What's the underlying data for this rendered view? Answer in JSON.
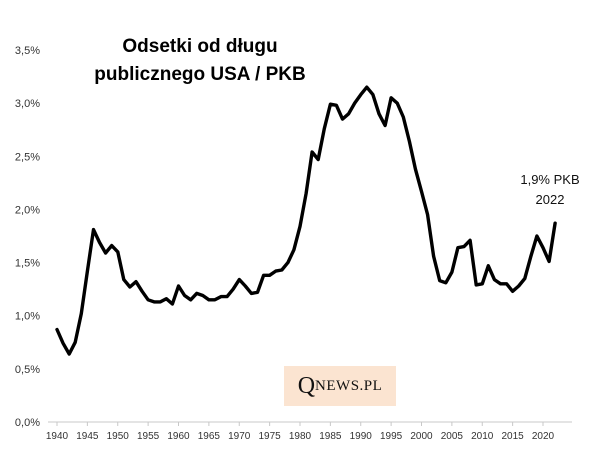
{
  "chart_data": {
    "type": "line",
    "title_lines": [
      "Odsetki od długu",
      "publicznego USA / PKB"
    ],
    "xlabel": "",
    "ylabel": "",
    "xlim": [
      1938,
      2023
    ],
    "ylim": [
      0,
      3.5
    ],
    "y_ticks": [
      {
        "value": 0,
        "label": "0,0%"
      },
      {
        "value": 0.5,
        "label": "0,5%"
      },
      {
        "value": 1.0,
        "label": "1,0%"
      },
      {
        "value": 1.5,
        "label": "1,5%"
      },
      {
        "value": 2.0,
        "label": "2,0%"
      },
      {
        "value": 2.5,
        "label": "2,5%"
      },
      {
        "value": 3.0,
        "label": "3,0%"
      },
      {
        "value": 3.5,
        "label": "3,5%"
      }
    ],
    "x_ticks": [
      1940,
      1945,
      1950,
      1955,
      1960,
      1965,
      1970,
      1975,
      1980,
      1985,
      1990,
      1995,
      2000,
      2005,
      2010,
      2015,
      2020
    ],
    "grid": false,
    "series": [
      {
        "name": "Odsetki od długu publicznego USA / PKB",
        "color": "#000000",
        "x": [
          1940,
          1941,
          1942,
          1943,
          1944,
          1945,
          1946,
          1947,
          1948,
          1949,
          1950,
          1951,
          1952,
          1953,
          1954,
          1955,
          1956,
          1957,
          1958,
          1959,
          1960,
          1961,
          1962,
          1963,
          1964,
          1965,
          1966,
          1967,
          1968,
          1969,
          1970,
          1971,
          1972,
          1973,
          1974,
          1975,
          1976,
          1977,
          1978,
          1979,
          1980,
          1981,
          1982,
          1983,
          1984,
          1985,
          1986,
          1987,
          1988,
          1989,
          1990,
          1991,
          1992,
          1993,
          1994,
          1995,
          1996,
          1997,
          1998,
          1999,
          2000,
          2001,
          2002,
          2003,
          2004,
          2005,
          2006,
          2007,
          2008,
          2009,
          2010,
          2011,
          2012,
          2013,
          2014,
          2015,
          2016,
          2017,
          2018,
          2019,
          2020,
          2021,
          2022
        ],
        "values": [
          0.87,
          0.74,
          0.64,
          0.75,
          1.02,
          1.42,
          1.81,
          1.69,
          1.59,
          1.66,
          1.6,
          1.34,
          1.27,
          1.32,
          1.23,
          1.15,
          1.13,
          1.13,
          1.16,
          1.11,
          1.28,
          1.19,
          1.15,
          1.21,
          1.19,
          1.15,
          1.15,
          1.18,
          1.18,
          1.25,
          1.34,
          1.28,
          1.21,
          1.22,
          1.38,
          1.38,
          1.42,
          1.43,
          1.5,
          1.62,
          1.84,
          2.15,
          2.54,
          2.47,
          2.76,
          2.99,
          2.98,
          2.85,
          2.9,
          3.0,
          3.08,
          3.15,
          3.08,
          2.9,
          2.79,
          3.05,
          3.0,
          2.87,
          2.64,
          2.38,
          2.17,
          1.95,
          1.56,
          1.33,
          1.31,
          1.41,
          1.64,
          1.65,
          1.71,
          1.29,
          1.3,
          1.47,
          1.34,
          1.3,
          1.3,
          1.23,
          1.28,
          1.35,
          1.56,
          1.75,
          1.64,
          1.51,
          1.87
        ]
      }
    ],
    "annotations": [
      {
        "x": 2022,
        "y": 1.87,
        "lines": [
          "1,9% PKB",
          "2022"
        ]
      }
    ]
  },
  "logo": {
    "q": "Q",
    "rest": "NEWS.PL"
  }
}
